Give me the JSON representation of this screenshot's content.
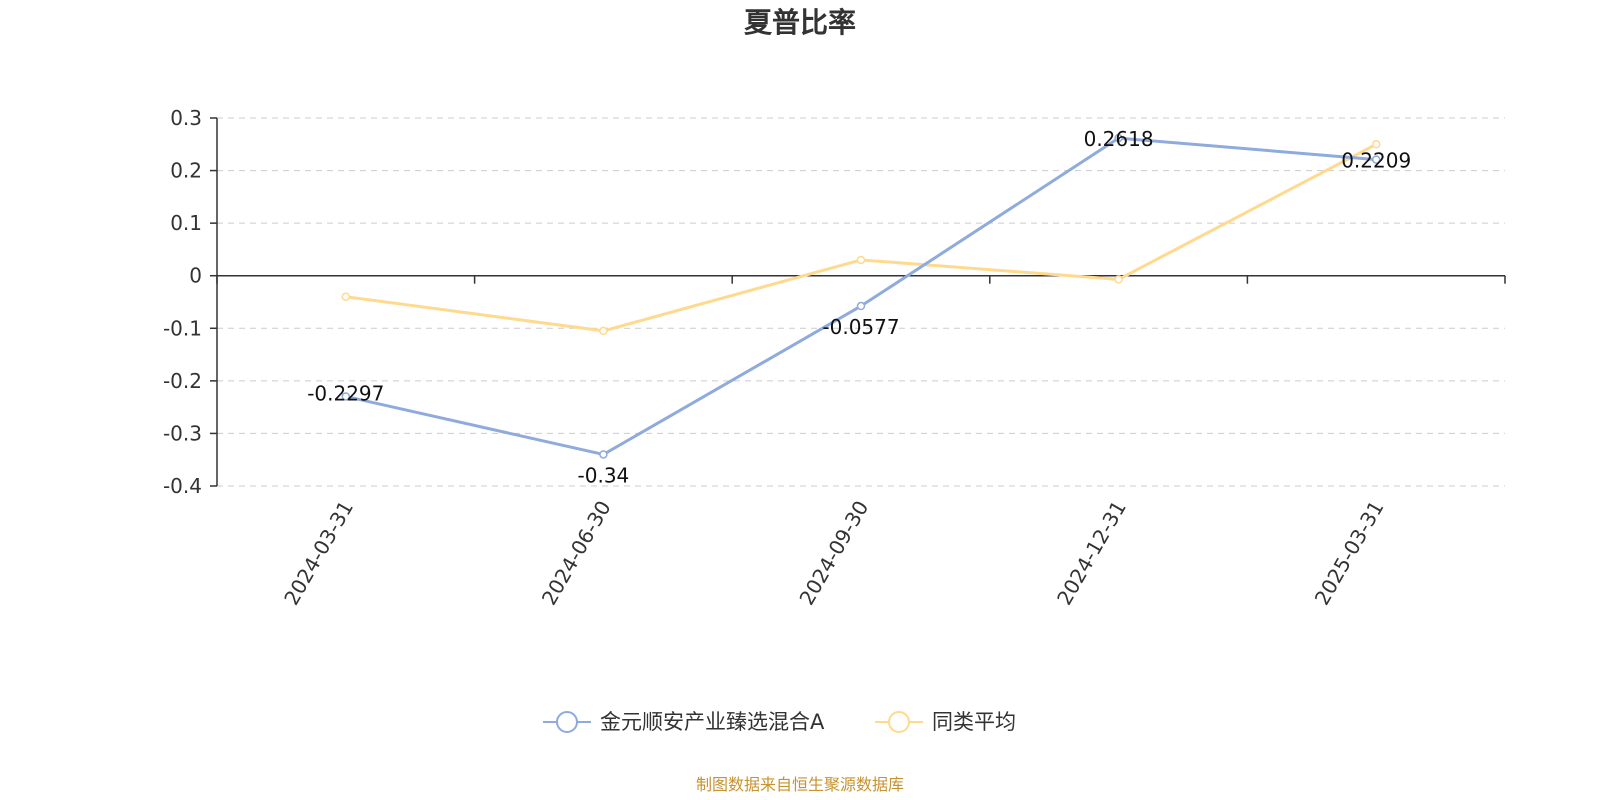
{
  "chart_data": {
    "type": "line",
    "title": "夏普比率",
    "categories": [
      "2024-03-31",
      "2024-06-30",
      "2024-09-30",
      "2024-12-31",
      "2025-03-31"
    ],
    "series": [
      {
        "name": "金元顺安产业臻选混合A",
        "values": [
          -0.2297,
          -0.34,
          -0.0577,
          0.2618,
          0.2209
        ],
        "labels": [
          "-0.2297",
          "-0.34",
          "-0.0577",
          "0.2618",
          "0.2209"
        ],
        "color": "#8FAADC"
      },
      {
        "name": "同类平均",
        "values": [
          -0.04,
          -0.105,
          0.03,
          -0.007,
          0.25
        ],
        "color": "#FFD98E"
      }
    ],
    "yticks": [
      "0.3",
      "0.2",
      "0.1",
      "0",
      "-0.1",
      "-0.2",
      "-0.3",
      "-0.4"
    ],
    "ylim": [
      -0.4,
      0.3
    ],
    "grid": true,
    "legend_position": "bottom-center"
  },
  "footer": {
    "source": "制图数据来自恒生聚源数据库",
    "color": "#C8922F"
  }
}
